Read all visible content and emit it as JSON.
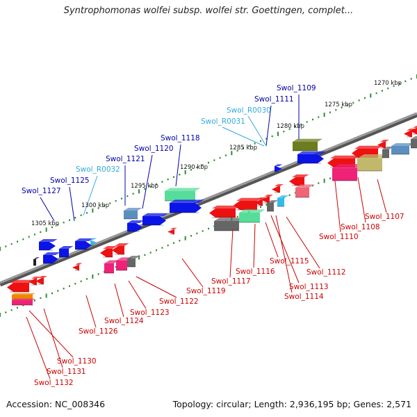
{
  "title": "Syntrophomonas wolfei subsp. wolfei str. Goettingen, complet...",
  "footer": {
    "accession": "Accession: NC_008346",
    "summary": "Topology: circular; Length: 2,936,195 bp; Genes: 2,571"
  },
  "colors": {
    "backbone": "#7a7a7a",
    "tick_dots": "#2e8b2e",
    "upper_label": "#0000aa",
    "rna_label": "#33aadd",
    "lower_label": "#cc0000",
    "gene_blue": "#0a14e6",
    "gene_red": "#ee1111",
    "gene_green": "#55dd99",
    "gene_olive": "#6b7d1f",
    "gene_gray": "#666666",
    "gene_pink": "#ee2277",
    "gene_orange": "#ee8800",
    "gene_tan": "#c2b86b",
    "gene_cyan": "#33bbee",
    "gene_steel": "#5b8fbf"
  },
  "scale_labels": [
    "1270 kbp",
    "1275 kbp",
    "1280 kbp",
    "1285 kbp",
    "1290 kbp",
    "1295 kbp",
    "1300 kbp",
    "1305 kbp"
  ],
  "upper_gene_labels": [
    {
      "text": "Swol_1109",
      "kind": "protein"
    },
    {
      "text": "Swol_1111",
      "kind": "protein"
    },
    {
      "text": "Swol_R0030",
      "kind": "rna"
    },
    {
      "text": "Swol_R0031",
      "kind": "rna"
    },
    {
      "text": "Swol_1118",
      "kind": "protein"
    },
    {
      "text": "Swol_1120",
      "kind": "protein"
    },
    {
      "text": "Swol_1121",
      "kind": "protein"
    },
    {
      "text": "Swol_R0032",
      "kind": "rna"
    },
    {
      "text": "Swol_1125",
      "kind": "protein"
    },
    {
      "text": "Swol_1127",
      "kind": "protein"
    }
  ],
  "lower_gene_labels": [
    "Swol_1107",
    "Swol_1108",
    "Swol_1110",
    "Swol_1112",
    "Swol_1115",
    "Swol_1113",
    "Swol_1114",
    "Swol_1116",
    "Swol_1117",
    "Swol_1119",
    "Swol_1122",
    "Swol_1123",
    "Swol_1124",
    "Swol_1126",
    "Swol_1130",
    "Swol_1131",
    "Swol_1132"
  ]
}
